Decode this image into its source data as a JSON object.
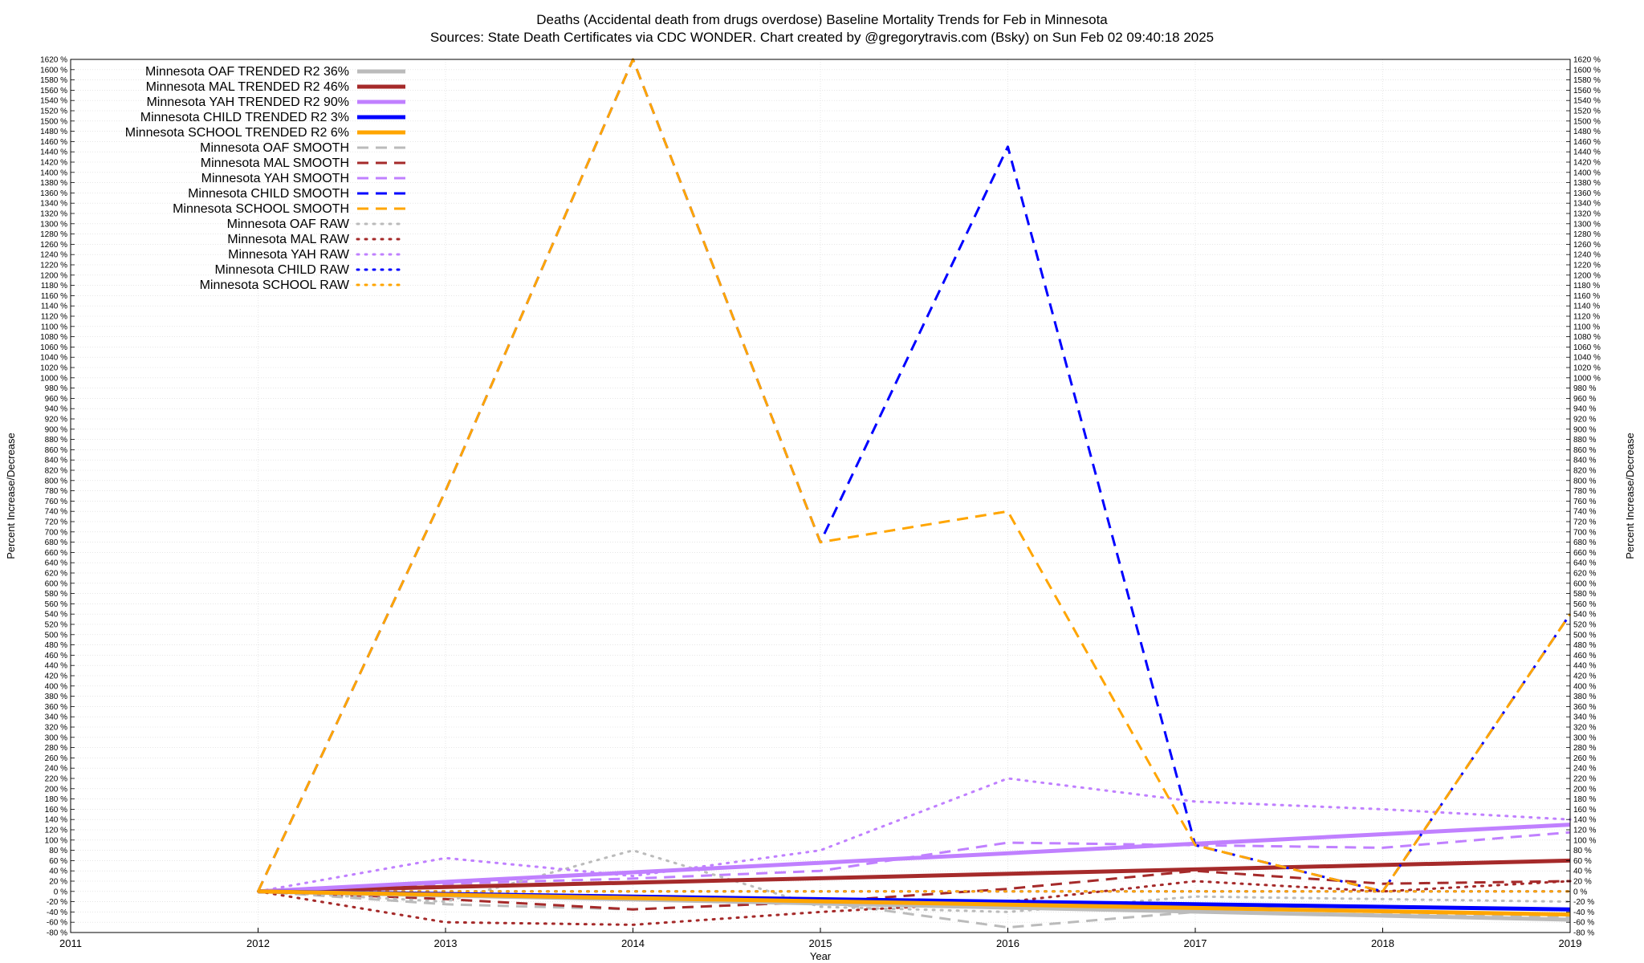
{
  "chart_data": {
    "type": "line",
    "title": "Deaths (Accidental death from drugs overdose)  Baseline Mortality Trends for Feb in Minnesota",
    "subtitle": "Sources: State Death Certificates via CDC WONDER.                Chart created by @gregorytravis.com (Bsky) on Sun Feb 02 09:40:18 2025",
    "xlabel": "Year",
    "ylabel": "Percent Increase/Decrease",
    "xlim": [
      2011,
      2019
    ],
    "ylim": [
      -80,
      1620
    ],
    "x_ticks": [
      "2011",
      "2012",
      "2013",
      "2014",
      "2015",
      "2016",
      "2017",
      "2018",
      "2019"
    ],
    "y_tick_step": 20,
    "y_tick_suffix": " %",
    "grid": true,
    "legend_position": "top-left",
    "series": [
      {
        "name": "Minnesota OAF TRENDED R2  36%",
        "color": "#bbbbbb",
        "style": "solid",
        "width": 5,
        "x": [
          2012,
          2019
        ],
        "y": [
          0,
          -55
        ]
      },
      {
        "name": "Minnesota MAL TRENDED R2  46%",
        "color": "#a52a2a",
        "style": "solid",
        "width": 5,
        "x": [
          2012,
          2019
        ],
        "y": [
          0,
          60
        ]
      },
      {
        "name": "Minnesota YAH TRENDED R2  90%",
        "color": "#c080ff",
        "style": "solid",
        "width": 5,
        "x": [
          2012,
          2019
        ],
        "y": [
          0,
          130
        ]
      },
      {
        "name": "Minnesota CHILD TRENDED R2   3%",
        "color": "#0000ff",
        "style": "solid",
        "width": 5,
        "x": [
          2012,
          2019
        ],
        "y": [
          0,
          -35
        ]
      },
      {
        "name": "Minnesota SCHOOL TRENDED R2   6%",
        "color": "#ffa500",
        "style": "solid",
        "width": 5,
        "x": [
          2012,
          2019
        ],
        "y": [
          0,
          -45
        ]
      },
      {
        "name": "Minnesota OAF SMOOTH",
        "color": "#bbbbbb",
        "style": "dashed",
        "width": 3,
        "x": [
          2012,
          2013,
          2014,
          2015,
          2016,
          2017,
          2018,
          2019
        ],
        "y": [
          0,
          -25,
          -35,
          -20,
          -70,
          -40,
          -45,
          -50
        ]
      },
      {
        "name": "Minnesota MAL SMOOTH",
        "color": "#a52a2a",
        "style": "dashed",
        "width": 3,
        "x": [
          2012,
          2013,
          2014,
          2015,
          2016,
          2017,
          2018,
          2019
        ],
        "y": [
          0,
          -15,
          -35,
          -20,
          5,
          40,
          15,
          20
        ]
      },
      {
        "name": "Minnesota YAH SMOOTH",
        "color": "#c080ff",
        "style": "dashed",
        "width": 3,
        "x": [
          2012,
          2013,
          2014,
          2015,
          2016,
          2017,
          2018,
          2019
        ],
        "y": [
          0,
          15,
          25,
          40,
          95,
          90,
          85,
          115
        ]
      },
      {
        "name": "Minnesota CHILD SMOOTH",
        "color": "#0000ff",
        "style": "dashed",
        "width": 3,
        "x": [
          2012,
          2013,
          2014,
          2015,
          2016,
          2017,
          2018,
          2019
        ],
        "y": [
          0,
          780,
          1620,
          680,
          1450,
          90,
          0,
          540
        ]
      },
      {
        "name": "Minnesota SCHOOL SMOOTH",
        "color": "#ffa500",
        "style": "dashed",
        "width": 3,
        "x": [
          2012,
          2013,
          2014,
          2015,
          2016,
          2017,
          2018,
          2019
        ],
        "y": [
          0,
          780,
          1620,
          680,
          740,
          90,
          0,
          540
        ]
      },
      {
        "name": "Minnesota OAF RAW",
        "color": "#bbbbbb",
        "style": "dotted",
        "width": 3,
        "x": [
          2012,
          2013,
          2014,
          2015,
          2016,
          2017,
          2018,
          2019
        ],
        "y": [
          0,
          -20,
          80,
          -30,
          -40,
          -10,
          -15,
          -20
        ]
      },
      {
        "name": "Minnesota MAL RAW",
        "color": "#a52a2a",
        "style": "dotted",
        "width": 3,
        "x": [
          2012,
          2013,
          2014,
          2015,
          2016,
          2017,
          2018,
          2019
        ],
        "y": [
          0,
          -60,
          -65,
          -40,
          -20,
          20,
          0,
          20
        ]
      },
      {
        "name": "Minnesota YAH RAW",
        "color": "#c080ff",
        "style": "dotted",
        "width": 3,
        "x": [
          2012,
          2013,
          2014,
          2015,
          2016,
          2017,
          2018,
          2019
        ],
        "y": [
          0,
          65,
          30,
          80,
          220,
          175,
          160,
          140
        ]
      },
      {
        "name": "Minnesota CHILD RAW",
        "color": "#0000ff",
        "style": "dotted",
        "width": 3,
        "x": [
          2012,
          2013,
          2014,
          2015,
          2016,
          2017,
          2018,
          2019
        ],
        "y": [
          0,
          0,
          0,
          0,
          0,
          0,
          0,
          0
        ]
      },
      {
        "name": "Minnesota SCHOOL RAW",
        "color": "#ffa500",
        "style": "dotted",
        "width": 3,
        "x": [
          2012,
          2013,
          2014,
          2015,
          2016,
          2017,
          2018,
          2019
        ],
        "y": [
          0,
          0,
          0,
          0,
          0,
          0,
          0,
          0
        ]
      }
    ]
  }
}
